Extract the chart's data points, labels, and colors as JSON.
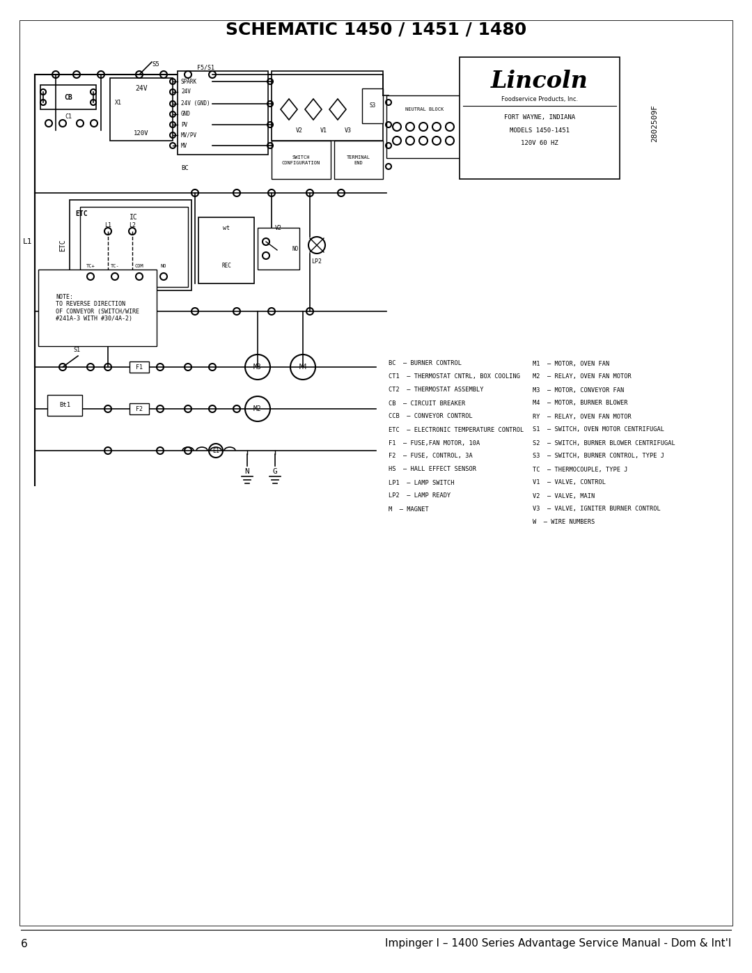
{
  "title": "SCHEMATIC 1450 / 1451 / 1480",
  "page_number": "6",
  "footer": "Impinger I – 1400 Series Advantage Service Manual - Dom & Int'l",
  "bg_color": "#ffffff",
  "text_color": "#000000",
  "title_fontsize": 18,
  "footer_fontsize": 11,
  "figsize": [
    10.8,
    13.97
  ],
  "dpi": 100,
  "legend_left": [
    "BC  – BURNER CONTROL",
    "CT1  – THERMOSTAT CNTRL, BOX COOLING",
    "CT2  – THERMOSTAT ASSEMBLY",
    "CB  – CIRCUIT BREAKER",
    "CCB  – CONVEYOR CONTROL",
    "ETC  – ELECTRONIC TEMPERATURE CONTROL",
    "F1  – FUSE,FAN MOTOR, 10A",
    "F2  – FUSE, CONTROL, 3A",
    "HS  – HALL EFFECT SENSOR",
    "LP1  – LAMP SWITCH",
    "LP2  – LAMP READY",
    "M  – MAGNET"
  ],
  "legend_right": [
    "M1  – MOTOR, OVEN FAN",
    "M2  – RELAY, OVEN FAN MOTOR",
    "M3  – MOTOR, CONVEYOR FAN",
    "M4  – MOTOR, BURNER BLOWER",
    "RY  – RELAY, OVEN FAN MOTOR",
    "S1  – SWITCH, OVEN MOTOR CENTRIFUGAL",
    "S2  – SWITCH, BURNER BLOWER CENTRIFUGAL",
    "S3  – SWITCH, BURNER CONTROL, TYPE J",
    "TC  – THERMOCOUPLE, TYPE J",
    "V1  – VALVE, CONTROL",
    "V2  – VALVE, MAIN",
    "V3  – VALVE, IGNITER BURNER CONTROL",
    "W  – WIRE NUMBERS"
  ],
  "note_text": "NOTE:\nTO REVERSE DIRECTION\nOF CONVEYOR (SWITCH/WIRE\n#241A-3 WITH #30/4A-2)",
  "model_info": [
    "Foodservice Products, Inc.",
    "FORT WAYNE, INDIANA",
    "MODELS 1450-1451",
    "120V 60 HZ"
  ],
  "doc_number": "2802509F",
  "spark_labels": [
    "SPARK",
    "24V",
    "24V (GND)",
    "GND",
    "PV",
    "MV/PV",
    "MV"
  ],
  "switch_label": "SWITCH\nCONFIGURATION",
  "terminal_label": "TERMINAL END",
  "neutral_label": "NEUTRAL BLOCK"
}
